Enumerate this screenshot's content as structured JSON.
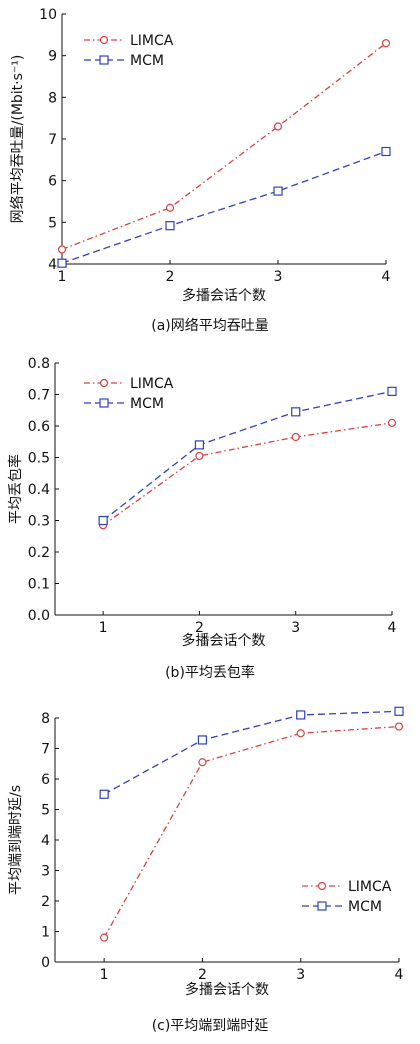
{
  "colors": {
    "LIMCA": "#d94040",
    "MCM": "#2f3fc0",
    "axis": "#111111"
  },
  "chart_data": [
    {
      "type": "line",
      "caption": "(a)网络平均吞吐量",
      "xlabel": "多播会话个数",
      "ylabel": "网络平均吞吐量/(Mbit·s⁻¹)",
      "x": [
        1,
        2,
        3,
        4
      ],
      "xticks": [
        "1",
        "2",
        "3",
        "4"
      ],
      "xlim": [
        1,
        4
      ],
      "ylim": [
        4,
        10
      ],
      "yticks": [
        "4",
        "5",
        "6",
        "7",
        "8",
        "9",
        "10"
      ],
      "grid": false,
      "legend_position": "top-left",
      "series": [
        {
          "name": "LIMCA",
          "values": [
            4.35,
            5.35,
            7.3,
            9.3
          ],
          "marker": "circle",
          "dash": "dashdot"
        },
        {
          "name": "MCM",
          "values": [
            4.02,
            4.92,
            5.75,
            6.7
          ],
          "marker": "square",
          "dash": "dashed"
        }
      ]
    },
    {
      "type": "line",
      "caption": "(b)平均丢包率",
      "xlabel": "多播会话个数",
      "ylabel": "平均丢包率",
      "x": [
        1,
        2,
        3,
        4
      ],
      "xticks": [
        "1",
        "2",
        "3",
        "4"
      ],
      "xlim": [
        0.5,
        4
      ],
      "ylim": [
        0,
        0.8
      ],
      "yticks": [
        "0.0",
        "0.1",
        "0.2",
        "0.3",
        "0.4",
        "0.5",
        "0.6",
        "0.7",
        "0.8"
      ],
      "grid": false,
      "legend_position": "top-left",
      "series": [
        {
          "name": "LIMCA",
          "values": [
            0.285,
            0.505,
            0.565,
            0.61
          ],
          "marker": "circle",
          "dash": "dashdot"
        },
        {
          "name": "MCM",
          "values": [
            0.3,
            0.54,
            0.645,
            0.71
          ],
          "marker": "square",
          "dash": "dashed"
        }
      ]
    },
    {
      "type": "line",
      "caption": "(c)平均端到端时延",
      "xlabel": "多播会话个数",
      "ylabel": "平均端到端时延/s",
      "x": [
        1,
        2,
        3,
        4
      ],
      "xticks": [
        "1",
        "2",
        "3",
        "4"
      ],
      "xlim": [
        0.5,
        4
      ],
      "ylim": [
        0,
        8
      ],
      "yticks": [
        "0",
        "1",
        "2",
        "3",
        "4",
        "5",
        "6",
        "7",
        "8"
      ],
      "grid": false,
      "legend_position": "bottom-right",
      "series": [
        {
          "name": "LIMCA",
          "values": [
            0.8,
            6.55,
            7.5,
            7.72
          ],
          "marker": "circle",
          "dash": "dashdot"
        },
        {
          "name": "MCM",
          "values": [
            5.5,
            7.28,
            8.1,
            8.22
          ],
          "marker": "square",
          "dash": "dashed"
        }
      ]
    }
  ]
}
